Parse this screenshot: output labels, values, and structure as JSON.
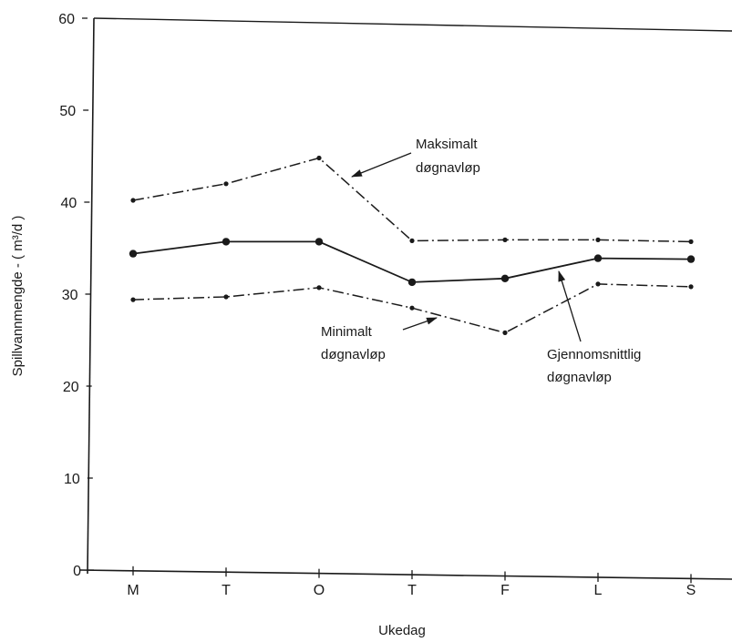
{
  "chart_data": {
    "type": "line",
    "title": "",
    "xlabel": "Ukedag",
    "ylabel": "Spillvannmengde - ( m³/d )",
    "categories": [
      "M",
      "T",
      "O",
      "T",
      "F",
      "L",
      "S"
    ],
    "ylim": [
      0,
      60
    ],
    "yticks": [
      0,
      10,
      20,
      30,
      40,
      50,
      60
    ],
    "grid": false,
    "series": [
      {
        "key": "maks",
        "values": [
          40.2,
          42.0,
          44.8,
          35.8,
          35.9,
          35.9,
          35.7
        ],
        "style": "dash-dot",
        "marker": "small"
      },
      {
        "key": "snitt",
        "values": [
          34.4,
          35.7,
          35.7,
          31.3,
          31.7,
          33.9,
          33.8
        ],
        "style": "solid",
        "marker": "large"
      },
      {
        "key": "min",
        "values": [
          29.4,
          29.7,
          30.7,
          28.5,
          25.8,
          31.1,
          30.8
        ],
        "style": "dash-dot",
        "marker": "small"
      }
    ],
    "annotations": {
      "maks": {
        "line1": "Maksimalt",
        "line2": "døgnavløp"
      },
      "min": {
        "line1": "Minimalt",
        "line2": "døgnavløp"
      },
      "snitt": {
        "line1": "Gjennomsnittlig",
        "line2": "døgnavløp"
      }
    }
  }
}
